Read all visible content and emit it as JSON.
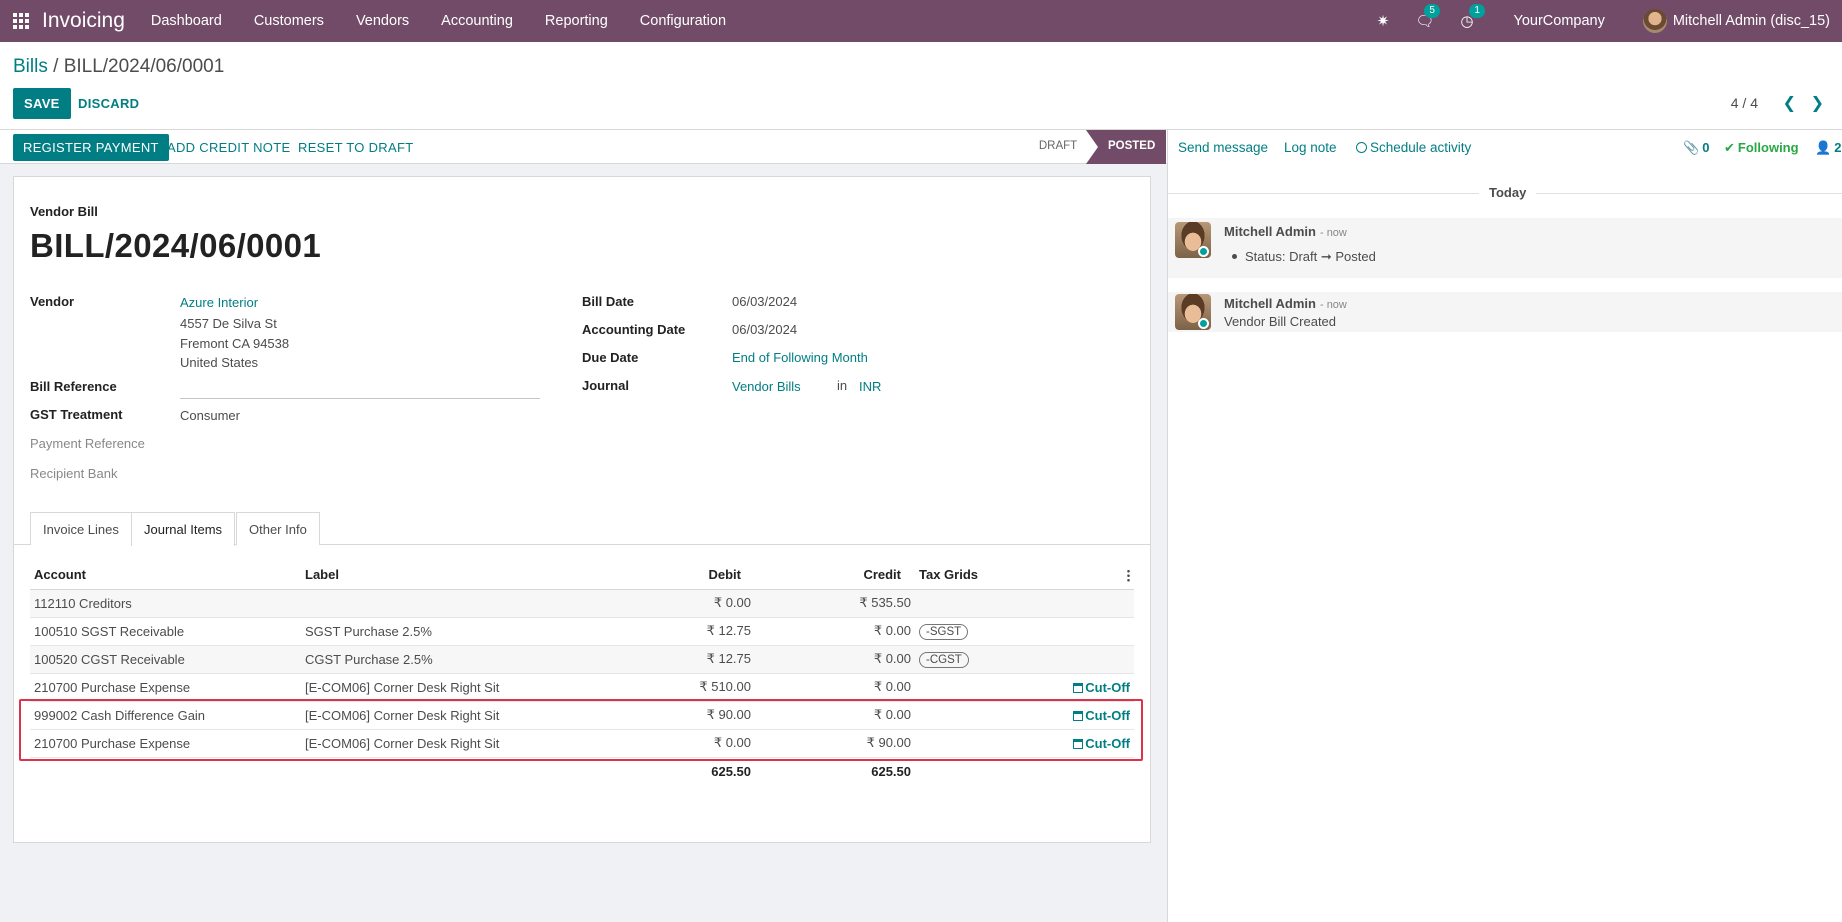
{
  "navbar": {
    "app_name": "Invoicing",
    "menu": [
      "Dashboard",
      "Customers",
      "Vendors",
      "Accounting",
      "Reporting",
      "Configuration"
    ],
    "messages_badge": "5",
    "activities_badge": "1",
    "company": "YourCompany",
    "user": "Mitchell Admin (disc_15)"
  },
  "control": {
    "breadcrumb_parent": "Bills",
    "breadcrumb_sep": "/",
    "breadcrumb_current": "BILL/2024/06/0001",
    "save_label": "SAVE",
    "discard_label": "DISCARD",
    "pager": "4 / 4"
  },
  "statusbar": {
    "register_payment": "REGISTER PAYMENT",
    "add_credit_note": "ADD CREDIT NOTE",
    "reset_to_draft": "RESET TO DRAFT",
    "stage_draft": "DRAFT",
    "stage_posted": "POSTED"
  },
  "form": {
    "doc_type": "Vendor Bill",
    "title": "BILL/2024/06/0001",
    "vendor_label": "Vendor",
    "vendor_name": "Azure Interior",
    "vendor_address": [
      "4557 De Silva St",
      "Fremont CA 94538",
      "United States"
    ],
    "bill_reference_label": "Bill Reference",
    "gst_treatment_label": "GST Treatment",
    "gst_treatment": "Consumer",
    "payment_reference_label": "Payment Reference",
    "recipient_bank_label": "Recipient Bank",
    "bill_date_label": "Bill Date",
    "bill_date": "06/03/2024",
    "accounting_date_label": "Accounting Date",
    "accounting_date": "06/03/2024",
    "due_date_label": "Due Date",
    "due_date": "End of Following Month",
    "journal_label": "Journal",
    "journal": "Vendor Bills",
    "journal_in": "in",
    "currency": "INR"
  },
  "tabs": [
    "Invoice Lines",
    "Journal Items",
    "Other Info"
  ],
  "journal_items": {
    "columns": [
      "Account",
      "Label",
      "Debit",
      "Credit",
      "Tax Grids"
    ],
    "rows": [
      {
        "account": "112110 Creditors",
        "label": "",
        "debit": "₹ 0.00",
        "credit": "₹ 535.50",
        "tax": "",
        "cutoff": ""
      },
      {
        "account": "100510 SGST Receivable",
        "label": "SGST Purchase 2.5%",
        "debit": "₹ 12.75",
        "credit": "₹ 0.00",
        "tax": "-SGST",
        "cutoff": ""
      },
      {
        "account": "100520 CGST Receivable",
        "label": "CGST Purchase 2.5%",
        "debit": "₹ 12.75",
        "credit": "₹ 0.00",
        "tax": "-CGST",
        "cutoff": ""
      },
      {
        "account": "210700 Purchase Expense",
        "label": "[E-COM06] Corner Desk Right Sit",
        "debit": "₹ 510.00",
        "credit": "₹ 0.00",
        "tax": "",
        "cutoff": "Cut-Off"
      },
      {
        "account": "999002 Cash Difference Gain",
        "label": "[E-COM06] Corner Desk Right Sit",
        "debit": "₹ 90.00",
        "credit": "₹ 0.00",
        "tax": "",
        "cutoff": "Cut-Off"
      },
      {
        "account": "210700 Purchase Expense",
        "label": "[E-COM06] Corner Desk Right Sit",
        "debit": "₹ 0.00",
        "credit": "₹ 90.00",
        "tax": "",
        "cutoff": "Cut-Off"
      }
    ],
    "total_debit": "625.50",
    "total_credit": "625.50"
  },
  "chatter": {
    "send_message": "Send message",
    "log_note": "Log note",
    "schedule_activity": "Schedule activity",
    "attachments": "0",
    "following": "Following",
    "followers": "2",
    "today": "Today",
    "messages": [
      {
        "author": "Mitchell Admin",
        "time": "- now",
        "body_status": "Status: Draft ➞ Posted"
      },
      {
        "author": "Mitchell Admin",
        "time": "- now",
        "body": "Vendor Bill Created"
      }
    ]
  },
  "colors": {
    "brand": "#714b67",
    "primary": "#017e84",
    "highlight": "#e0314b"
  }
}
